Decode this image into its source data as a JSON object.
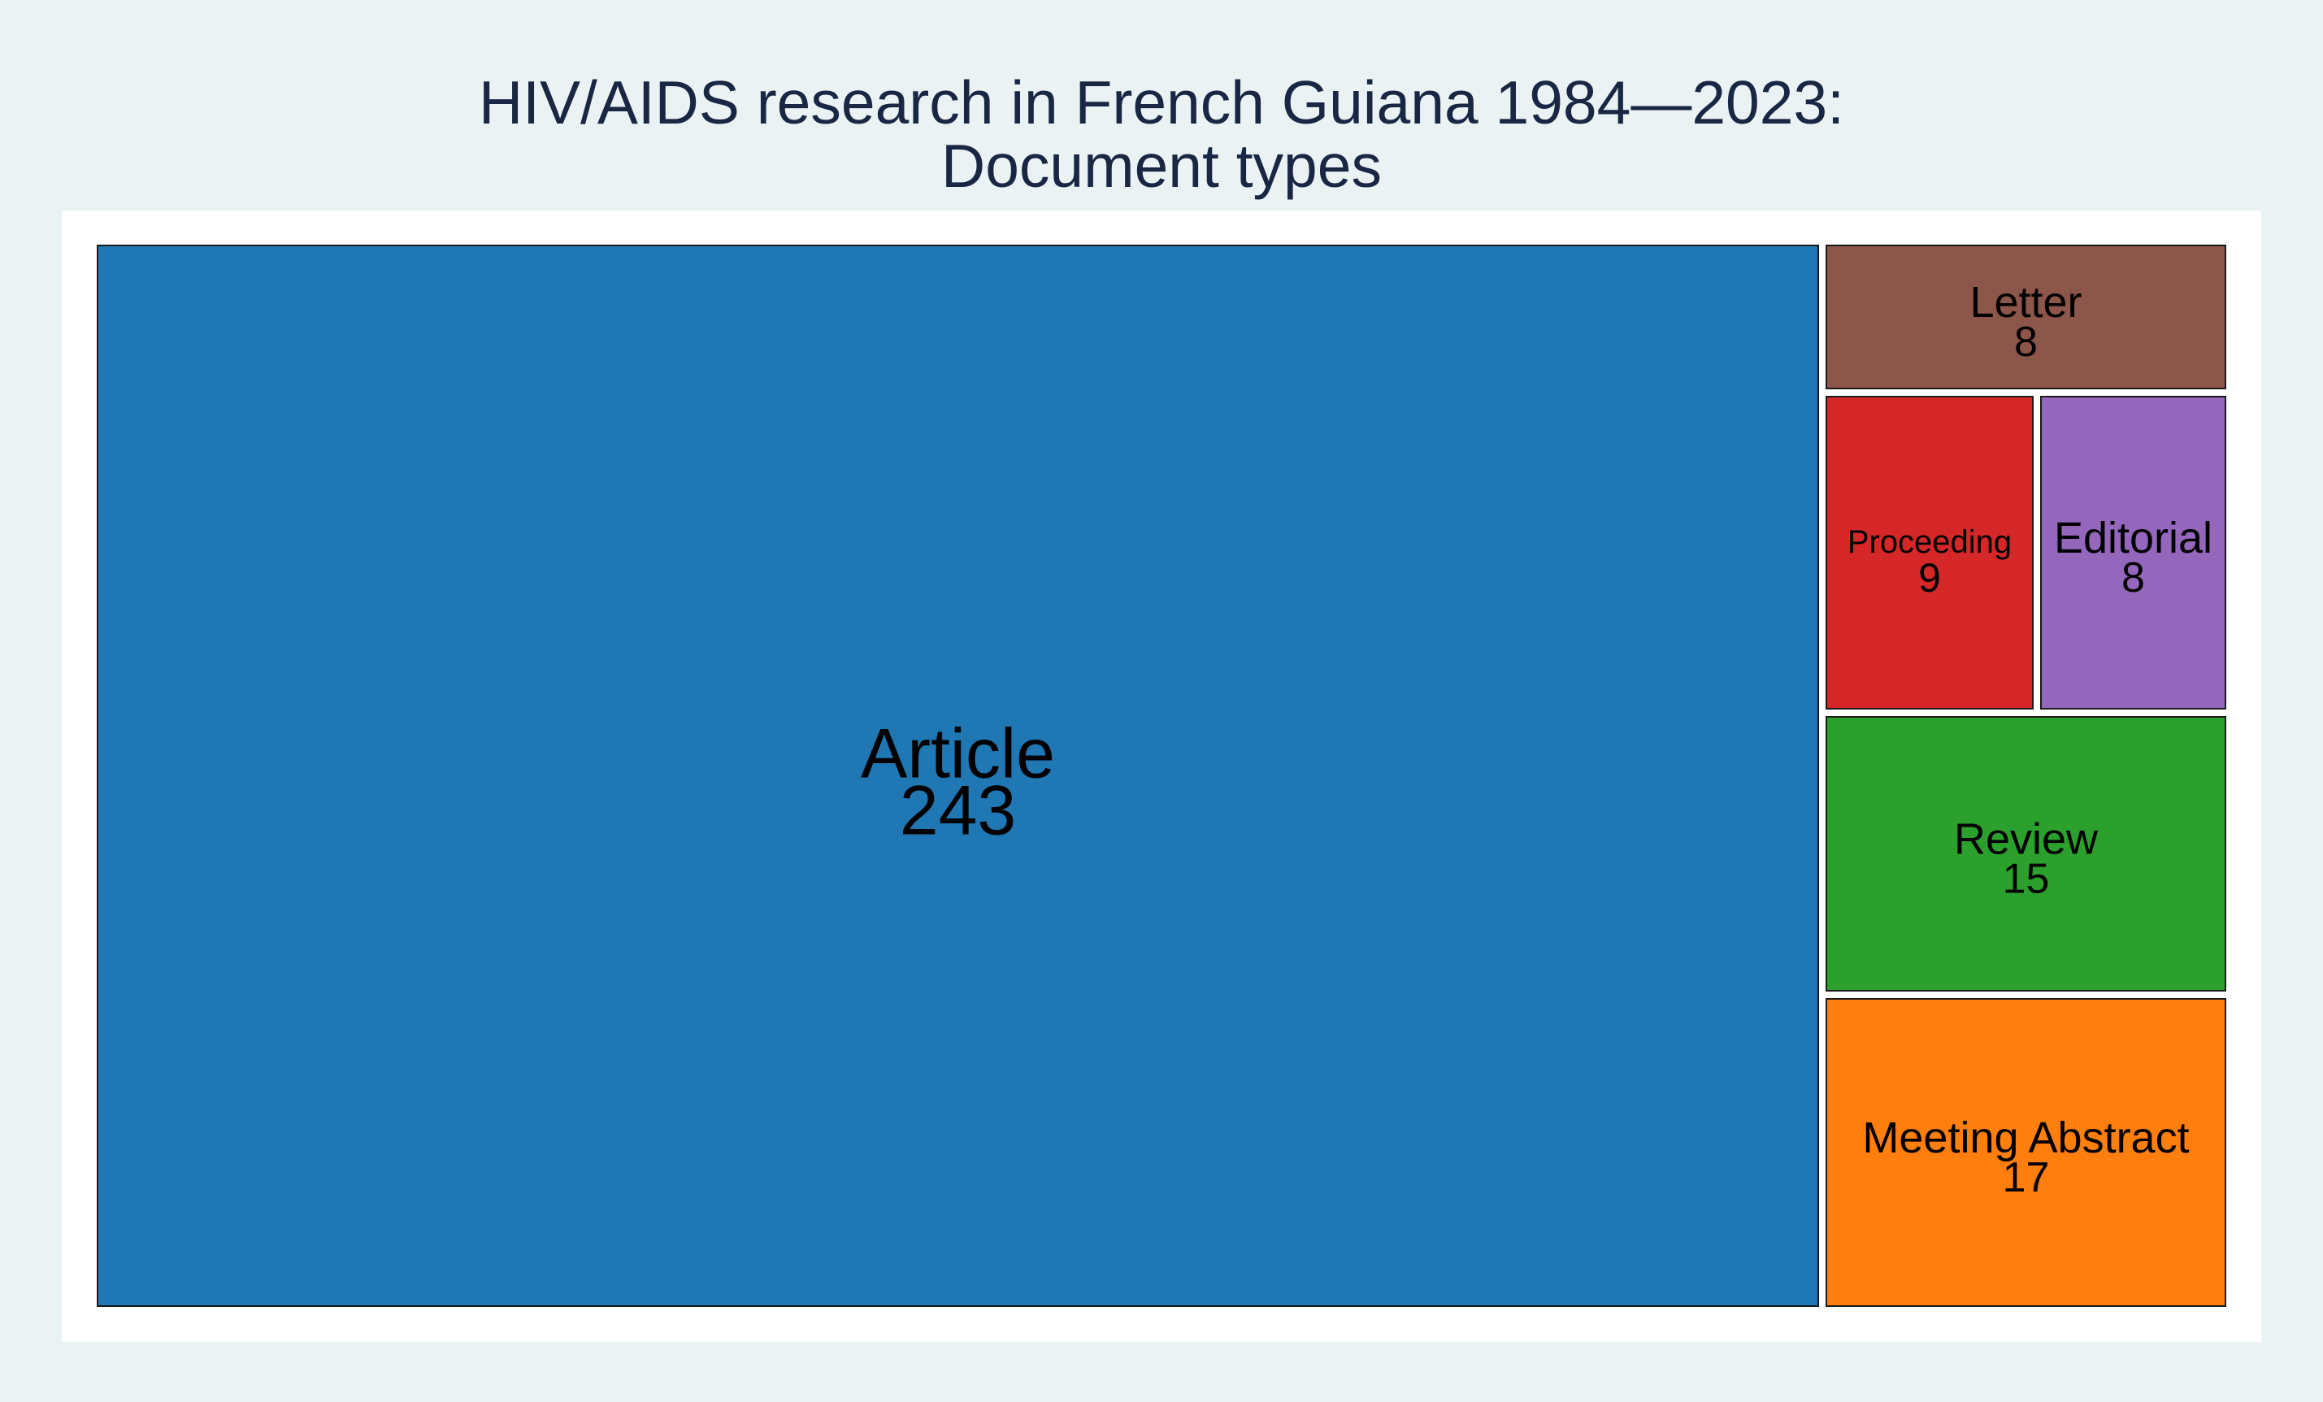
{
  "chart_data": {
    "type": "treemap",
    "title_lines": [
      "HIV/AIDS research in French Guiana 1984—2023:",
      "Document types"
    ],
    "tiles": [
      {
        "label": "Article",
        "value": 243,
        "color": "#1f77b4"
      },
      {
        "label": "Meeting Abstract",
        "value": 17,
        "color": "#ff7f0e"
      },
      {
        "label": "Review",
        "value": 15,
        "color": "#2ca02c"
      },
      {
        "label": "Proceeding",
        "value": 9,
        "color": "#d62728"
      },
      {
        "label": "Editorial",
        "value": 8,
        "color": "#9467bd"
      },
      {
        "label": "Letter",
        "value": 8,
        "color": "#8c564b"
      }
    ],
    "colors": {
      "outer_background": "#eaf2f3",
      "plot_background": "#ffffff",
      "title": "#1a2744",
      "tile_border": "#1a1a1a"
    }
  }
}
